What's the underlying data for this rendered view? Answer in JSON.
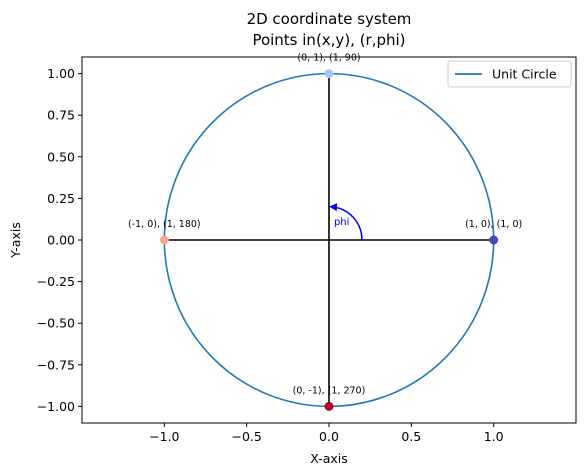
{
  "chart_data": {
    "type": "line",
    "title_lines": [
      "2D coordinate system",
      "Points in(x,y), (r,phi)"
    ],
    "xlabel": "X-axis",
    "ylabel": "Y-axis",
    "xlim": [
      -1.5,
      1.5
    ],
    "ylim": [
      -1.1,
      1.1
    ],
    "xticks": [
      -1.0,
      -0.5,
      0.0,
      0.5,
      1.0
    ],
    "xtick_labels": [
      "−1.0",
      "−0.5",
      "0.0",
      "0.5",
      "1.0"
    ],
    "yticks": [
      -1.0,
      -0.75,
      -0.5,
      -0.25,
      0.0,
      0.25,
      0.5,
      0.75,
      1.0
    ],
    "ytick_labels": [
      "−1.00",
      "−0.75",
      "−0.50",
      "−0.25",
      "0.00",
      "0.25",
      "0.50",
      "0.75",
      "1.00"
    ],
    "grid": false,
    "legend_position": "upper right",
    "series": [
      {
        "name": "Unit Circle",
        "shape": "circle",
        "center": [
          0,
          0
        ],
        "radius": 1,
        "color": "#1f77b4"
      }
    ],
    "axis_lines": [
      {
        "from": [
          -1,
          0
        ],
        "to": [
          1,
          0
        ],
        "color": "#000000"
      },
      {
        "from": [
          0,
          -1
        ],
        "to": [
          0,
          1
        ],
        "color": "#000000"
      }
    ],
    "points": [
      {
        "x": 1,
        "y": 0,
        "label": "(1, 0), (1, 0)",
        "color": "#3b4cc0"
      },
      {
        "x": 0,
        "y": 1,
        "label": "(0, 1), (1, 90)",
        "color": "#aac7fd"
      },
      {
        "x": -1,
        "y": 0,
        "label": "(-1, 0), (1, 180)",
        "color": "#f7a889"
      },
      {
        "x": 0,
        "y": -1,
        "label": "(0, -1), (1, 270)",
        "color": "#b40426"
      }
    ],
    "phi_annotation": {
      "label": "phi",
      "color": "#0000ff",
      "arc_from": [
        0.2,
        0
      ],
      "arc_to": [
        0.0,
        0.2
      ]
    }
  }
}
